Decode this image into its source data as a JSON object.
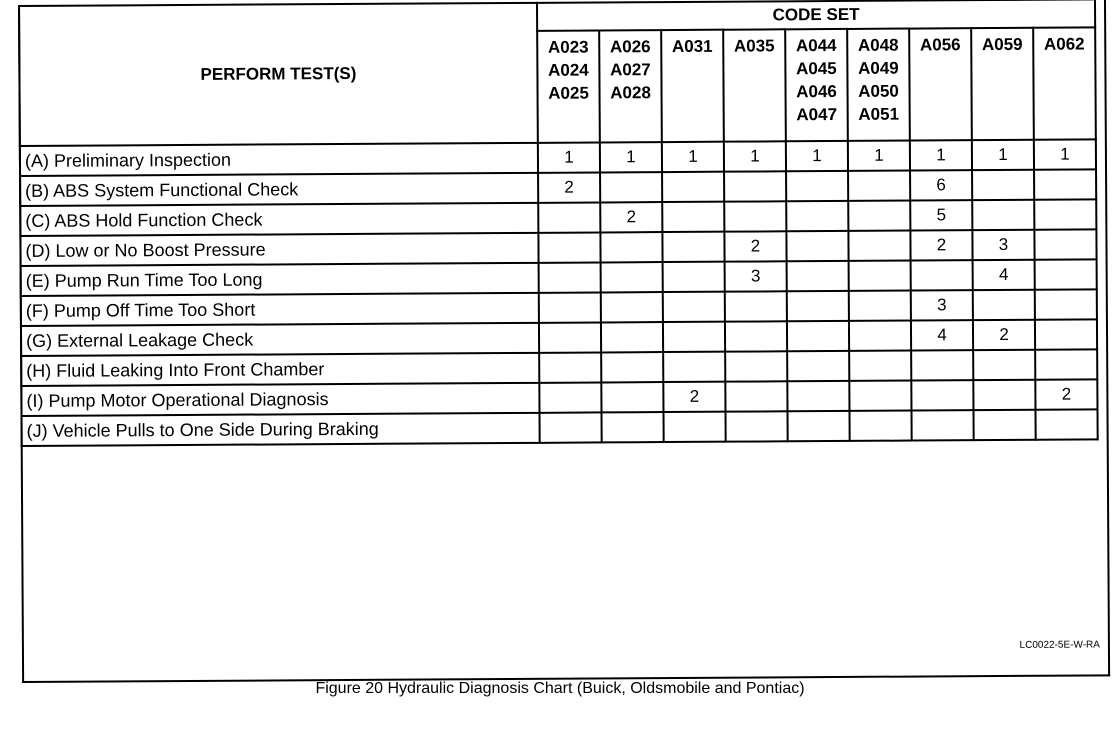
{
  "header": {
    "perform_tests": "PERFORM TEST(S)",
    "code_set": "CODE SET"
  },
  "columns": [
    [
      "A023",
      "A024",
      "A025"
    ],
    [
      "A026",
      "A027",
      "A028"
    ],
    [
      "A031"
    ],
    [
      "A035"
    ],
    [
      "A044",
      "A045",
      "A046",
      "A047"
    ],
    [
      "A048",
      "A049",
      "A050",
      "A051"
    ],
    [
      "A056"
    ],
    [
      "A059"
    ],
    [
      "A062"
    ]
  ],
  "rows": [
    {
      "test": "(A) Preliminary Inspection",
      "values": [
        "1",
        "1",
        "1",
        "1",
        "1",
        "1",
        "1",
        "1",
        "1"
      ]
    },
    {
      "test": "(B) ABS System Functional Check",
      "values": [
        "2",
        "",
        "",
        "",
        "",
        "",
        "6",
        "",
        ""
      ]
    },
    {
      "test": "(C) ABS Hold Function Check",
      "values": [
        "",
        "2",
        "",
        "",
        "",
        "",
        "5",
        "",
        ""
      ]
    },
    {
      "test": "(D) Low or No Boost Pressure",
      "values": [
        "",
        "",
        "",
        "2",
        "",
        "",
        "2",
        "3",
        ""
      ]
    },
    {
      "test": "(E) Pump Run Time Too Long",
      "values": [
        "",
        "",
        "",
        "3",
        "",
        "",
        "",
        "4",
        ""
      ]
    },
    {
      "test": "(F) Pump Off Time Too Short",
      "values": [
        "",
        "",
        "",
        "",
        "",
        "",
        "3",
        "",
        ""
      ]
    },
    {
      "test": "(G) External Leakage Check",
      "values": [
        "",
        "",
        "",
        "",
        "",
        "",
        "4",
        "2",
        ""
      ]
    },
    {
      "test": "(H) Fluid Leaking Into Front Chamber",
      "values": [
        "",
        "",
        "",
        "",
        "",
        "",
        "",
        "",
        ""
      ]
    },
    {
      "test": "(I) Pump Motor Operational Diagnosis",
      "values": [
        "",
        "",
        "2",
        "",
        "",
        "",
        "",
        "",
        "2"
      ]
    },
    {
      "test": "(J) Vehicle Pulls to One Side During Braking",
      "values": [
        "",
        "",
        "",
        "",
        "",
        "",
        "",
        "",
        ""
      ]
    }
  ],
  "figure_code": "LC0022-5E-W-RA",
  "caption": "Figure 20 Hydraulic Diagnosis Chart (Buick, Oldsmobile and Pontiac)"
}
